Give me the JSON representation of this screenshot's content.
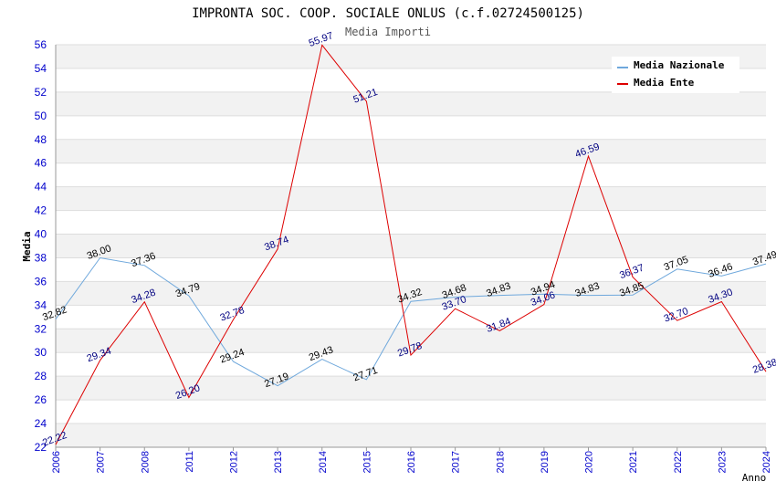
{
  "chart_data": {
    "type": "line",
    "title": "IMPRONTA SOC. COOP. SOCIALE ONLUS (c.f.02724500125)",
    "subtitle": "Media Importi",
    "xlabel": "Anno",
    "ylabel": "Media",
    "ylim": [
      22,
      56
    ],
    "ytick_step": 2,
    "categories": [
      "2006",
      "2007",
      "2008",
      "2011",
      "2012",
      "2013",
      "2014",
      "2015",
      "2016",
      "2017",
      "2018",
      "2019",
      "2020",
      "2021",
      "2022",
      "2023",
      "2024"
    ],
    "series": [
      {
        "name": "Media Nazionale",
        "color": "#6fa8dc",
        "values": [
          32.82,
          38.0,
          37.36,
          34.79,
          29.24,
          27.19,
          29.43,
          27.71,
          34.32,
          34.68,
          34.83,
          34.94,
          34.83,
          34.85,
          37.05,
          36.46,
          37.49
        ],
        "labels": [
          "32.82",
          "38.00",
          "37.36",
          "34.79",
          "29.24",
          "27.19",
          "29.43",
          "27.71",
          "34.32",
          "34.68",
          "34.83",
          "34.94",
          "34.83",
          "34.85",
          "37.05",
          "36.46",
          "37.49"
        ]
      },
      {
        "name": "Media Ente",
        "color": "#dd0000",
        "values": [
          22.22,
          29.34,
          34.28,
          26.2,
          32.78,
          38.74,
          55.97,
          51.21,
          29.78,
          33.7,
          31.84,
          34.06,
          46.59,
          36.37,
          32.7,
          34.3,
          28.38
        ],
        "labels": [
          "22.22",
          "29.34",
          "34.28",
          "26.20",
          "32.78",
          "38.74",
          "55.97",
          "51.21",
          "29.78",
          "33.70",
          "31.84",
          "34.06",
          "46.59",
          "36.37",
          "32.70",
          "34.30",
          "28.38"
        ]
      }
    ],
    "legend_position": "top-right",
    "grid": true
  }
}
